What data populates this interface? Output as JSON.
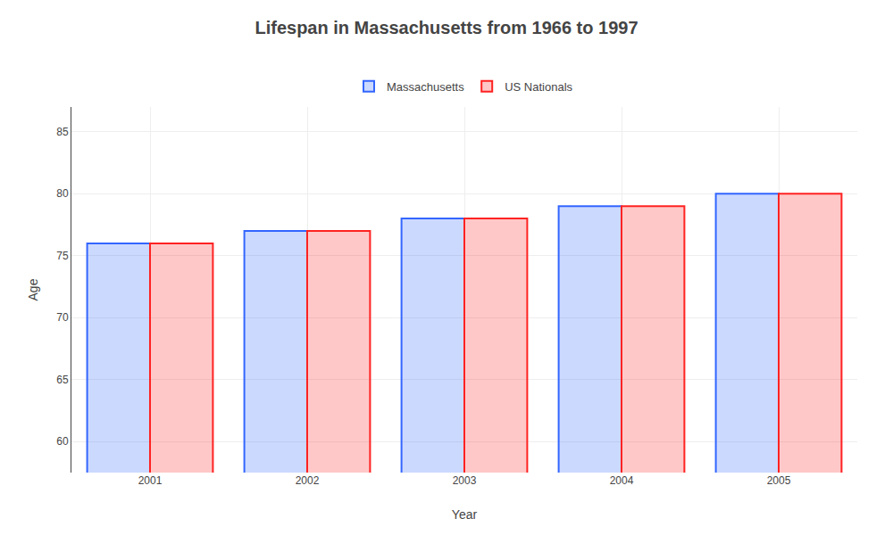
{
  "chart_data": {
    "type": "bar",
    "title": "Lifespan in Massachusetts from 1966 to 1997",
    "xlabel": "Year",
    "ylabel": "Age",
    "categories": [
      "2001",
      "2002",
      "2003",
      "2004",
      "2005"
    ],
    "series": [
      {
        "name": "Massachusetts",
        "color": "#3366ff",
        "values": [
          76,
          77,
          78,
          79,
          80
        ]
      },
      {
        "name": "US Nationals",
        "color": "#ff2222",
        "values": [
          76,
          77,
          78,
          79,
          80
        ]
      }
    ],
    "ylim": [
      57.5,
      87
    ],
    "yticks": [
      60,
      65,
      70,
      75,
      80,
      85
    ],
    "grid": true,
    "legend": "top"
  }
}
